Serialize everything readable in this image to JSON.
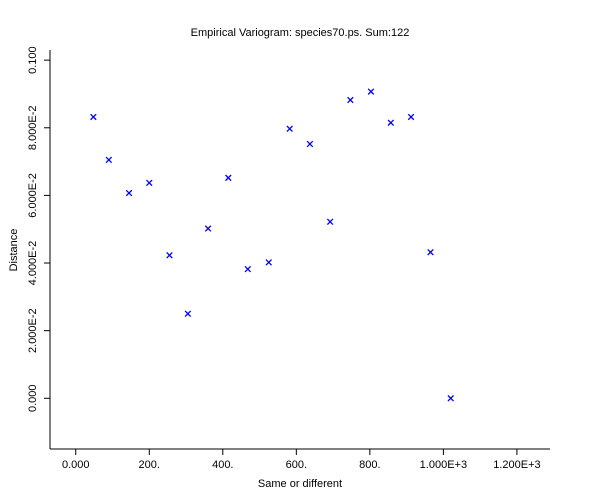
{
  "chart_data": {
    "type": "scatter",
    "title": "Empirical Variogram: species70.ps. Sum:122",
    "xlabel": "Same or different",
    "ylabel": "Distance",
    "xlim": [
      -70,
      1290
    ],
    "ylim": [
      -0.015,
      0.103
    ],
    "x_ticks": [
      {
        "value": 0,
        "label": "0.000"
      },
      {
        "value": 200,
        "label": "200."
      },
      {
        "value": 400,
        "label": "400."
      },
      {
        "value": 600,
        "label": "600."
      },
      {
        "value": 800,
        "label": "800."
      },
      {
        "value": 1000,
        "label": "1.000E+3"
      },
      {
        "value": 1200,
        "label": "1.200E+3"
      }
    ],
    "y_ticks": [
      {
        "value": 0.0,
        "label": "0.000"
      },
      {
        "value": 0.02,
        "label": "2.000E-2"
      },
      {
        "value": 0.04,
        "label": "4.000E-2"
      },
      {
        "value": 0.06,
        "label": "6.000E-2"
      },
      {
        "value": 0.08,
        "label": "8.000E-2"
      },
      {
        "value": 0.1,
        "label": "0.100"
      }
    ],
    "marker": "x",
    "marker_color": "#0000ff",
    "grid": false,
    "series": [
      {
        "points": [
          {
            "x": 48,
            "y": 0.0832
          },
          {
            "x": 90,
            "y": 0.0705
          },
          {
            "x": 145,
            "y": 0.0607
          },
          {
            "x": 200,
            "y": 0.0637
          },
          {
            "x": 255,
            "y": 0.0423
          },
          {
            "x": 305,
            "y": 0.025
          },
          {
            "x": 360,
            "y": 0.0502
          },
          {
            "x": 415,
            "y": 0.0652
          },
          {
            "x": 468,
            "y": 0.0382
          },
          {
            "x": 525,
            "y": 0.0402
          },
          {
            "x": 582,
            "y": 0.0797
          },
          {
            "x": 637,
            "y": 0.0752
          },
          {
            "x": 692,
            "y": 0.0522
          },
          {
            "x": 747,
            "y": 0.0882
          },
          {
            "x": 803,
            "y": 0.0907
          },
          {
            "x": 857,
            "y": 0.0815
          },
          {
            "x": 912,
            "y": 0.0832
          },
          {
            "x": 965,
            "y": 0.0432
          },
          {
            "x": 1020,
            "y": 0.0
          }
        ]
      }
    ]
  }
}
